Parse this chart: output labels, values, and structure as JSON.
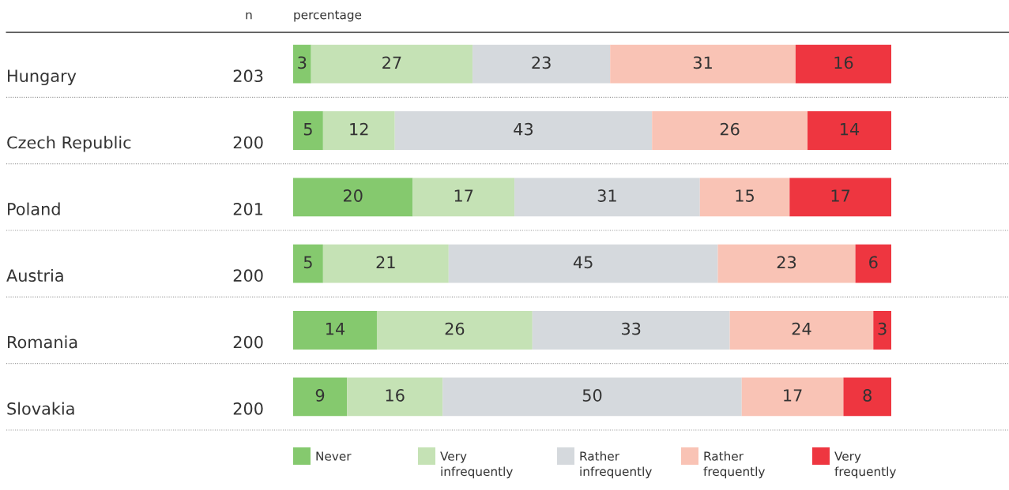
{
  "chart_data": {
    "type": "bar",
    "orientation": "horizontal",
    "stacked": true,
    "data_labels": true,
    "legend": "bottom",
    "xlim": [
      0,
      100
    ],
    "categories": [
      "Hungary",
      "Czech Republic",
      "Poland",
      "Austria",
      "Romania",
      "Slovakia"
    ],
    "series": [
      {
        "name": "Never",
        "color": "#85c96e",
        "values": [
          3,
          5,
          20,
          5,
          14,
          9
        ]
      },
      {
        "name": "Very\ninfrequently",
        "color": "#c5e2b5",
        "values": [
          27,
          12,
          17,
          21,
          26,
          16
        ]
      },
      {
        "name": "Rather\ninfrequently",
        "color": "#d5d9dd",
        "values": [
          23,
          43,
          31,
          45,
          33,
          50
        ]
      },
      {
        "name": "Rather\nfrequently",
        "color": "#f9c3b5",
        "values": [
          31,
          26,
          15,
          23,
          24,
          17
        ]
      },
      {
        "name": "Very\nfrequently",
        "color": "#ee3640",
        "values": [
          16,
          14,
          17,
          6,
          3,
          8
        ]
      }
    ],
    "annotations": [
      "n",
      "percentage",
      "203",
      "200",
      "201",
      "200",
      "200",
      "200"
    ]
  }
}
